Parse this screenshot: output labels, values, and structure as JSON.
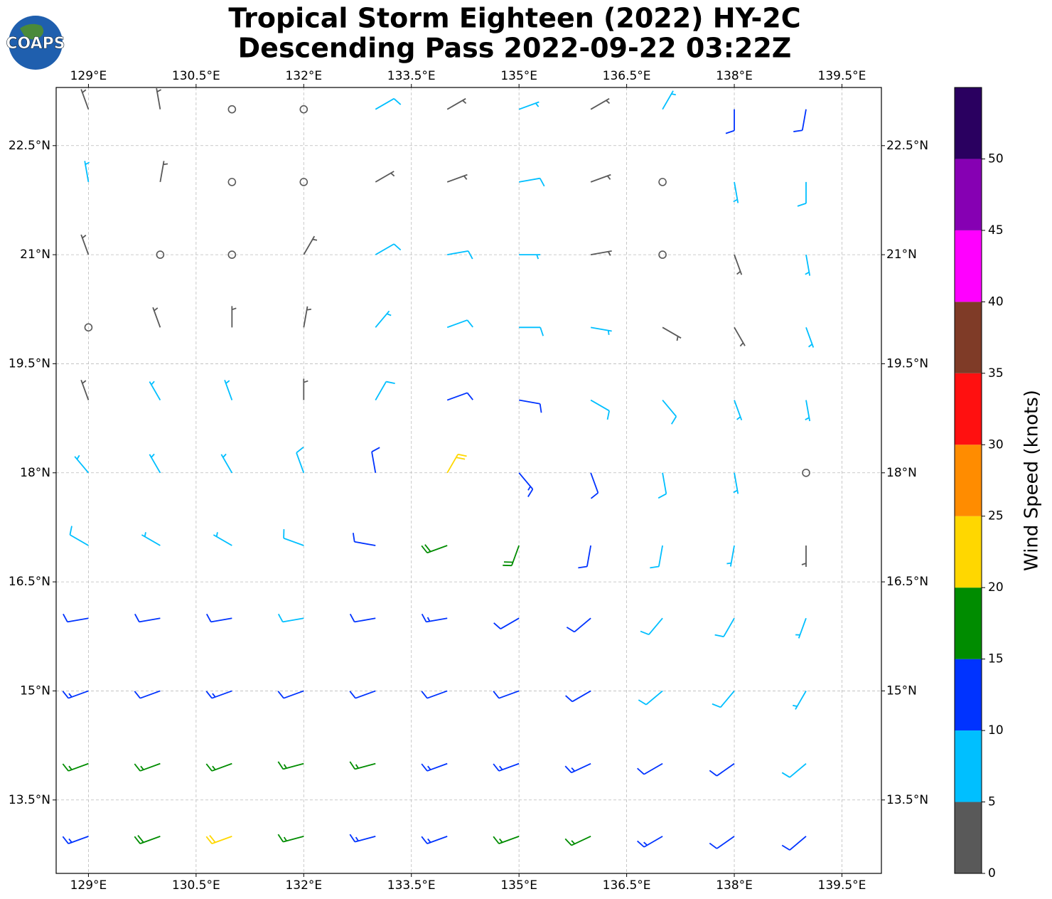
{
  "chart_data": {
    "type": "barbs",
    "title": "Tropical Storm Eighteen (2022) HY-2C",
    "subtitle": "Descending Pass 2022-09-22 03:22Z",
    "logo": "COAPS",
    "xlim": [
      128.55,
      140.05
    ],
    "ylim": [
      12.49,
      23.3
    ],
    "xticks": [
      {
        "value": 129,
        "label": "129°E"
      },
      {
        "value": 130.5,
        "label": "130.5°E"
      },
      {
        "value": 132,
        "label": "132°E"
      },
      {
        "value": 133.5,
        "label": "133.5°E"
      },
      {
        "value": 135,
        "label": "135°E"
      },
      {
        "value": 136.5,
        "label": "136.5°E"
      },
      {
        "value": 138,
        "label": "138°E"
      },
      {
        "value": 139.5,
        "label": "139.5°E"
      }
    ],
    "yticks": [
      {
        "value": 13.5,
        "label": "13.5°N"
      },
      {
        "value": 15,
        "label": "15°N"
      },
      {
        "value": 16.5,
        "label": "16.5°N"
      },
      {
        "value": 18,
        "label": "18°N"
      },
      {
        "value": 19.5,
        "label": "19.5°N"
      },
      {
        "value": 21,
        "label": "21°N"
      },
      {
        "value": 22.5,
        "label": "22.5°N"
      }
    ],
    "grid": true,
    "lons": [
      129,
      130,
      131,
      132,
      133,
      134,
      135,
      136,
      137,
      138,
      139
    ],
    "lats": [
      23,
      22,
      21,
      20,
      19,
      18,
      17,
      16,
      15,
      14,
      13
    ],
    "speed": [
      [
        4,
        3,
        2,
        2,
        8,
        3,
        7,
        3,
        6,
        10,
        12
      ],
      [
        7,
        3,
        2,
        2,
        3,
        3,
        8,
        3,
        2,
        6,
        9
      ],
      [
        3,
        2,
        2,
        3,
        8,
        8,
        7,
        3,
        2,
        4,
        7
      ],
      [
        2,
        3,
        3,
        3,
        7,
        8,
        8,
        7,
        4,
        4,
        6
      ],
      [
        4,
        6,
        6,
        3,
        8,
        11,
        11,
        9,
        8,
        7,
        7
      ],
      [
        7,
        6,
        6,
        8,
        12,
        20,
        14,
        11,
        8,
        5,
        2
      ],
      [
        8,
        7,
        7,
        9,
        12,
        18,
        19,
        12,
        9,
        7,
        3
      ],
      [
        11,
        10,
        10,
        9,
        10,
        13,
        11,
        10,
        9,
        8,
        7
      ],
      [
        13,
        12,
        13,
        12,
        12,
        12,
        11,
        10,
        9,
        8,
        7
      ],
      [
        17,
        16,
        16,
        15,
        15,
        13,
        14,
        13,
        12,
        11,
        9
      ],
      [
        13,
        19,
        21,
        17,
        14,
        13,
        17,
        16,
        13,
        11,
        10
      ]
    ],
    "direction": [
      [
        340,
        350,
        0,
        20,
        60,
        60,
        70,
        60,
        30,
        180,
        190
      ],
      [
        350,
        10,
        20,
        40,
        60,
        70,
        80,
        70,
        40,
        170,
        180
      ],
      [
        340,
        0,
        20,
        30,
        60,
        80,
        90,
        80,
        40,
        160,
        170
      ],
      [
        330,
        340,
        0,
        10,
        40,
        70,
        90,
        100,
        120,
        150,
        160
      ],
      [
        340,
        330,
        340,
        0,
        30,
        70,
        100,
        120,
        140,
        160,
        170
      ],
      [
        320,
        330,
        330,
        340,
        350,
        30,
        140,
        160,
        170,
        170,
        180
      ],
      [
        300,
        300,
        300,
        290,
        280,
        250,
        200,
        190,
        190,
        190,
        180
      ],
      [
        260,
        260,
        260,
        260,
        260,
        260,
        240,
        230,
        220,
        210,
        200
      ],
      [
        250,
        250,
        250,
        250,
        250,
        250,
        250,
        240,
        230,
        220,
        210
      ],
      [
        250,
        250,
        250,
        255,
        255,
        250,
        250,
        245,
        240,
        235,
        230
      ],
      [
        250,
        250,
        250,
        255,
        255,
        250,
        250,
        245,
        240,
        235,
        230
      ]
    ],
    "colorbar": {
      "label": "Wind Speed (knots)",
      "lim": [
        0,
        55
      ],
      "ticks": [
        0,
        5,
        10,
        15,
        20,
        25,
        30,
        35,
        40,
        45,
        50
      ],
      "colors": [
        "#595959",
        "#00bfff",
        "#0033ff",
        "#008c00",
        "#ffd700",
        "#ff8c00",
        "#ff1010",
        "#7f3b27",
        "#ff00ff",
        "#8600b3",
        "#2a0060"
      ]
    }
  }
}
